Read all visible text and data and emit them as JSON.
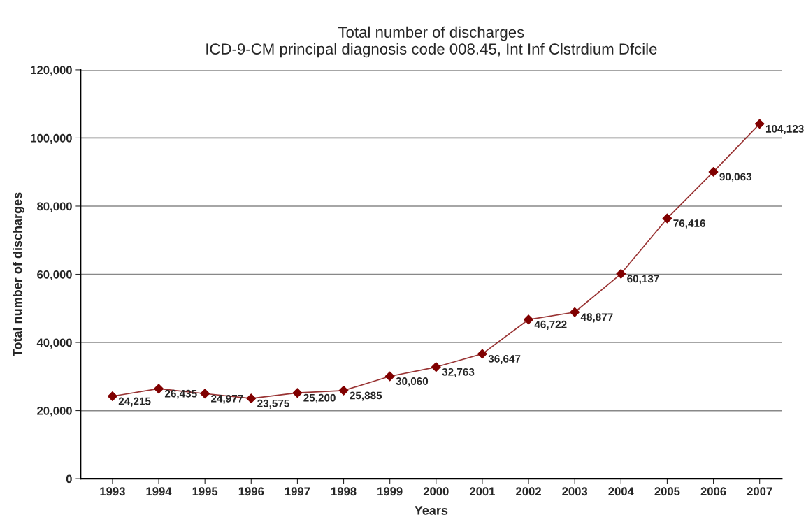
{
  "chart_data": {
    "type": "line",
    "title": "Total number of discharges\nICD-9-CM principal diagnosis code 008.45, Int Inf Clstrdium Dfcile",
    "xlabel": "Years",
    "ylabel": "Total number of discharges",
    "categories": [
      "1993",
      "1994",
      "1995",
      "1996",
      "1997",
      "1998",
      "1999",
      "2000",
      "2001",
      "2002",
      "2003",
      "2004",
      "2005",
      "2006",
      "2007"
    ],
    "series": [
      {
        "color": "#800000",
        "values": [
          24215,
          26435,
          24977,
          23575,
          25200,
          25885,
          30060,
          32763,
          36647,
          46722,
          48877,
          60137,
          76416,
          90063,
          104123
        ]
      }
    ],
    "ylim": [
      0,
      120000
    ],
    "yticks": [
      {
        "value": 0,
        "label": "0"
      },
      {
        "value": 20000,
        "label": "20,000"
      },
      {
        "value": 40000,
        "label": "40,000"
      },
      {
        "value": 60000,
        "label": "60,000"
      },
      {
        "value": 80000,
        "label": "80,000"
      },
      {
        "value": 100000,
        "label": "100,000"
      },
      {
        "value": 120000,
        "label": "120,000"
      }
    ],
    "grid": "y",
    "marker": "diamond",
    "line_style": "solid",
    "value_labels": [
      "24,215",
      "26,435",
      "24,977",
      "23,575",
      "25,200",
      "25,885",
      "30,060",
      "32,763",
      "36,647",
      "46,722",
      "48,877",
      "60,137",
      "76,416",
      "90,063",
      "104,123"
    ]
  }
}
